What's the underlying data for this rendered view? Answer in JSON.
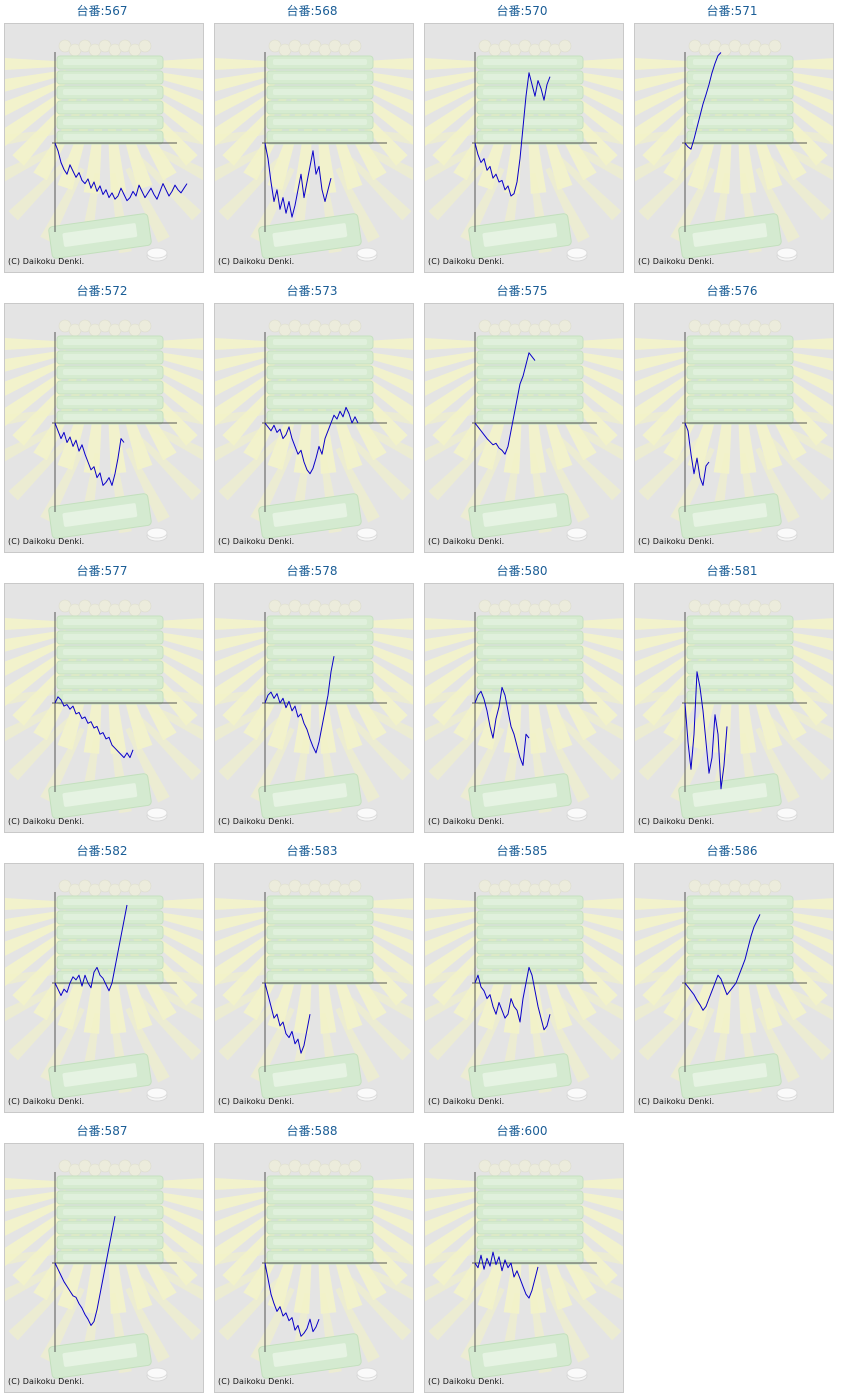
{
  "page": {
    "copyright": "(C) Daikoku Denki."
  },
  "colors": {
    "line": "#0a00c8",
    "axis": "#555555",
    "panel_bg": "#e4e4e4",
    "title": "#1a5d96"
  },
  "chart_data": [
    {
      "type": "line",
      "title": "台番:567",
      "y": [
        0,
        -10,
        -25,
        -34,
        -40,
        -28,
        -36,
        -44,
        -38,
        -48,
        -52,
        -46,
        -58,
        -50,
        -62,
        -55,
        -66,
        -60,
        -70,
        -64,
        -72,
        -68,
        -58,
        -66,
        -74,
        -70,
        -62,
        -68,
        -54,
        -62,
        -70,
        -64,
        -58,
        -66,
        -72,
        -62,
        -52,
        -60,
        -68,
        -62,
        -54,
        -60,
        -64,
        -58,
        -52
      ]
    },
    {
      "type": "line",
      "title": "台番:568",
      "y": [
        0,
        -20,
        -50,
        -75,
        -60,
        -85,
        -70,
        -90,
        -75,
        -95,
        -80,
        -60,
        -40,
        -70,
        -50,
        -30,
        -10,
        -40,
        -30,
        -60,
        -75,
        -60,
        -45
      ]
    },
    {
      "type": "line",
      "title": "台番:570",
      "y": [
        0,
        -15,
        -25,
        -20,
        -35,
        -30,
        -45,
        -40,
        -50,
        -48,
        -60,
        -55,
        -68,
        -65,
        -50,
        -20,
        20,
        60,
        90,
        75,
        60,
        80,
        70,
        55,
        75,
        85
      ]
    },
    {
      "type": "line",
      "title": "台番:571",
      "y": [
        0,
        -5,
        -8,
        5,
        20,
        35,
        50,
        62,
        75,
        90,
        102,
        112,
        116
      ]
    },
    {
      "type": "line",
      "title": "台番:572",
      "y": [
        0,
        -10,
        -20,
        -12,
        -25,
        -18,
        -30,
        -22,
        -36,
        -28,
        -40,
        -50,
        -60,
        -56,
        -70,
        -64,
        -80,
        -76,
        -70,
        -80,
        -65,
        -45,
        -20,
        -25
      ]
    },
    {
      "type": "line",
      "title": "台番:573",
      "y": [
        0,
        -5,
        -10,
        -3,
        -12,
        -8,
        -20,
        -15,
        -5,
        -20,
        -30,
        -40,
        -35,
        -50,
        -60,
        -65,
        -58,
        -45,
        -30,
        -40,
        -20,
        -10,
        0,
        10,
        5,
        15,
        8,
        20,
        12,
        0,
        8,
        0
      ]
    },
    {
      "type": "line",
      "title": "台番:575",
      "y": [
        0,
        -5,
        -10,
        -15,
        -20,
        -24,
        -28,
        -26,
        -32,
        -35,
        -40,
        -30,
        -10,
        10,
        30,
        50,
        60,
        75,
        90,
        85,
        80
      ]
    },
    {
      "type": "line",
      "title": "台番:576",
      "y": [
        0,
        -10,
        -40,
        -65,
        -45,
        -70,
        -80,
        -55,
        -50
      ]
    },
    {
      "type": "line",
      "title": "台番:577",
      "y": [
        0,
        8,
        4,
        -4,
        -2,
        -8,
        -4,
        -14,
        -12,
        -20,
        -18,
        -26,
        -24,
        -32,
        -30,
        -40,
        -38,
        -46,
        -44,
        -54,
        -58,
        -62,
        -66,
        -70,
        -64,
        -70,
        -60
      ]
    },
    {
      "type": "line",
      "title": "台番:578",
      "y": [
        0,
        10,
        14,
        6,
        12,
        0,
        6,
        -6,
        2,
        -10,
        -4,
        -18,
        -14,
        -26,
        -34,
        -46,
        -56,
        -64,
        -50,
        -30,
        -10,
        10,
        40,
        60
      ]
    },
    {
      "type": "line",
      "title": "台番:580",
      "y": [
        0,
        10,
        15,
        5,
        -10,
        -30,
        -45,
        -20,
        -5,
        20,
        10,
        -10,
        -30,
        -40,
        -55,
        -70,
        -80,
        -40,
        -45
      ]
    },
    {
      "type": "line",
      "title": "台番:581",
      "y": [
        0,
        -50,
        -85,
        -40,
        40,
        20,
        -10,
        -50,
        -90,
        -70,
        -15,
        -40,
        -110,
        -80,
        -30
      ]
    },
    {
      "type": "line",
      "title": "台番:582",
      "y": [
        0,
        -8,
        -16,
        -8,
        -12,
        0,
        8,
        4,
        10,
        -4,
        10,
        0,
        -6,
        14,
        20,
        10,
        6,
        -2,
        -10,
        0,
        20,
        40,
        60,
        80,
        100
      ]
    },
    {
      "type": "line",
      "title": "台番:583",
      "y": [
        0,
        -15,
        -30,
        -45,
        -40,
        -55,
        -50,
        -65,
        -70,
        -62,
        -78,
        -72,
        -90,
        -80,
        -60,
        -40
      ]
    },
    {
      "type": "line",
      "title": "台番:585",
      "y": [
        0,
        10,
        -5,
        -10,
        -20,
        -15,
        -30,
        -40,
        -25,
        -35,
        -45,
        -40,
        -20,
        -30,
        -35,
        -50,
        -20,
        0,
        20,
        10,
        -10,
        -30,
        -45,
        -60,
        -55,
        -40
      ]
    },
    {
      "type": "line",
      "title": "台番:586",
      "y": [
        0,
        -5,
        -10,
        -15,
        -22,
        -28,
        -35,
        -30,
        -20,
        -10,
        0,
        10,
        5,
        -5,
        -15,
        -10,
        -5,
        0,
        10,
        20,
        30,
        45,
        60,
        72,
        80,
        88
      ]
    },
    {
      "type": "line",
      "title": "台番:587",
      "y": [
        0,
        -8,
        -16,
        -24,
        -30,
        -36,
        -42,
        -44,
        -52,
        -58,
        -66,
        -72,
        -80,
        -75,
        -60,
        -40,
        -20,
        0,
        20,
        40,
        60
      ]
    },
    {
      "type": "line",
      "title": "台番:588",
      "y": [
        0,
        -20,
        -40,
        -52,
        -62,
        -56,
        -68,
        -64,
        -74,
        -70,
        -86,
        -80,
        -94,
        -90,
        -84,
        -72,
        -88,
        -82,
        -72
      ]
    },
    {
      "type": "line",
      "title": "台番:600",
      "y": [
        0,
        -6,
        10,
        -8,
        6,
        -4,
        14,
        -2,
        8,
        -10,
        4,
        -6,
        0,
        -18,
        -10,
        -20,
        -30,
        -40,
        -45,
        -35,
        -20,
        -5
      ]
    }
  ]
}
